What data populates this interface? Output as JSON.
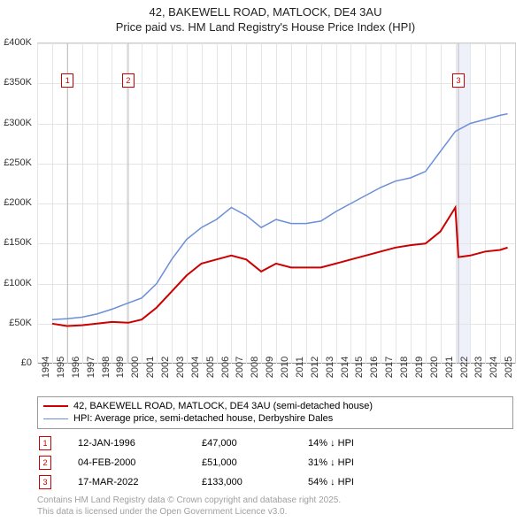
{
  "title": {
    "line1": "42, BAKEWELL ROAD, MATLOCK, DE4 3AU",
    "line2": "Price paid vs. HM Land Registry's House Price Index (HPI)",
    "fontsize": 13,
    "color": "#222222"
  },
  "chart": {
    "type": "line",
    "background_color": "#ffffff",
    "grid_color": "#e5e5e5",
    "axis_color": "#888888",
    "label_fontsize": 11,
    "x": {
      "min": 1994,
      "max": 2026,
      "ticks": [
        1994,
        1995,
        1996,
        1997,
        1998,
        1999,
        2000,
        2001,
        2002,
        2003,
        2004,
        2005,
        2006,
        2007,
        2008,
        2009,
        2010,
        2011,
        2012,
        2013,
        2014,
        2015,
        2016,
        2017,
        2018,
        2019,
        2020,
        2021,
        2022,
        2023,
        2024,
        2025
      ]
    },
    "y": {
      "min": 0,
      "max": 400000,
      "ticks": [
        0,
        50000,
        100000,
        150000,
        200000,
        250000,
        300000,
        350000,
        400000
      ],
      "tick_labels": [
        "£0",
        "£50K",
        "£100K",
        "£150K",
        "£200K",
        "£250K",
        "£300K",
        "£350K",
        "£400K"
      ]
    },
    "series": [
      {
        "name": "42, BAKEWELL ROAD, MATLOCK, DE4 3AU (semi-detached house)",
        "color": "#cc0000",
        "line_width": 2,
        "points": [
          [
            1995.0,
            50000
          ],
          [
            1996.0,
            47000
          ],
          [
            1997.0,
            48000
          ],
          [
            1998.0,
            50000
          ],
          [
            1999.0,
            52000
          ],
          [
            2000.1,
            51000
          ],
          [
            2001.0,
            55000
          ],
          [
            2002.0,
            70000
          ],
          [
            2003.0,
            90000
          ],
          [
            2004.0,
            110000
          ],
          [
            2005.0,
            125000
          ],
          [
            2006.0,
            130000
          ],
          [
            2007.0,
            135000
          ],
          [
            2008.0,
            130000
          ],
          [
            2009.0,
            115000
          ],
          [
            2010.0,
            125000
          ],
          [
            2011.0,
            120000
          ],
          [
            2012.0,
            120000
          ],
          [
            2013.0,
            120000
          ],
          [
            2014.0,
            125000
          ],
          [
            2015.0,
            130000
          ],
          [
            2016.0,
            135000
          ],
          [
            2017.0,
            140000
          ],
          [
            2018.0,
            145000
          ],
          [
            2019.0,
            148000
          ],
          [
            2020.0,
            150000
          ],
          [
            2021.0,
            165000
          ],
          [
            2022.0,
            195000
          ],
          [
            2022.21,
            133000
          ],
          [
            2023.0,
            135000
          ],
          [
            2024.0,
            140000
          ],
          [
            2025.0,
            142000
          ],
          [
            2025.5,
            145000
          ]
        ]
      },
      {
        "name": "HPI: Average price, semi-detached house, Derbyshire Dales",
        "color": "#6a8fd8",
        "line_width": 1.5,
        "points": [
          [
            1995.0,
            55000
          ],
          [
            1996.0,
            56000
          ],
          [
            1997.0,
            58000
          ],
          [
            1998.0,
            62000
          ],
          [
            1999.0,
            68000
          ],
          [
            2000.0,
            75000
          ],
          [
            2001.0,
            82000
          ],
          [
            2002.0,
            100000
          ],
          [
            2003.0,
            130000
          ],
          [
            2004.0,
            155000
          ],
          [
            2005.0,
            170000
          ],
          [
            2006.0,
            180000
          ],
          [
            2007.0,
            195000
          ],
          [
            2008.0,
            185000
          ],
          [
            2009.0,
            170000
          ],
          [
            2010.0,
            180000
          ],
          [
            2011.0,
            175000
          ],
          [
            2012.0,
            175000
          ],
          [
            2013.0,
            178000
          ],
          [
            2014.0,
            190000
          ],
          [
            2015.0,
            200000
          ],
          [
            2016.0,
            210000
          ],
          [
            2017.0,
            220000
          ],
          [
            2018.0,
            228000
          ],
          [
            2019.0,
            232000
          ],
          [
            2020.0,
            240000
          ],
          [
            2021.0,
            265000
          ],
          [
            2022.0,
            290000
          ],
          [
            2023.0,
            300000
          ],
          [
            2024.0,
            305000
          ],
          [
            2025.0,
            310000
          ],
          [
            2025.5,
            312000
          ]
        ]
      }
    ],
    "markers": [
      {
        "n": "1",
        "year": 1996.03,
        "color": "#cc0000"
      },
      {
        "n": "2",
        "year": 2000.1,
        "color": "#cc0000"
      },
      {
        "n": "3",
        "year": 2022.21,
        "color": "#cc0000"
      }
    ],
    "highlight_band": {
      "from": 2022.05,
      "to": 2023.05,
      "color": "#eef0fa"
    }
  },
  "legend": {
    "items": [
      {
        "label": "42, BAKEWELL ROAD, MATLOCK, DE4 3AU (semi-detached house)",
        "color": "#cc0000",
        "width": 2
      },
      {
        "label": "HPI: Average price, semi-detached house, Derbyshire Dales",
        "color": "#6a8fd8",
        "width": 1.5
      }
    ]
  },
  "events": [
    {
      "n": "1",
      "date": "12-JAN-1996",
      "price": "£47,000",
      "delta": "14% ↓ HPI",
      "color": "#cc0000"
    },
    {
      "n": "2",
      "date": "04-FEB-2000",
      "price": "£51,000",
      "delta": "31% ↓ HPI",
      "color": "#cc0000"
    },
    {
      "n": "3",
      "date": "17-MAR-2022",
      "price": "£133,000",
      "delta": "54% ↓ HPI",
      "color": "#cc0000"
    }
  ],
  "footer": {
    "line1": "Contains HM Land Registry data © Crown copyright and database right 2025.",
    "line2": "This data is licensed under the Open Government Licence v3.0.",
    "color": "#a0a0a0"
  }
}
